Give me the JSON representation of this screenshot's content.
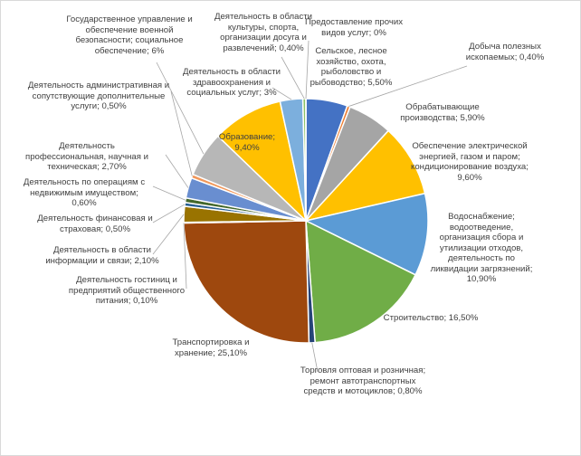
{
  "chart_data": {
    "type": "pie",
    "label_separator": "; ",
    "categories": [
      "Сельское, лесное хозяйство, охота, рыболовство и рыбоводство",
      "Добыча полезных ископаемых",
      "Обрабатывающие производства",
      "Обеспечение электрической энергией, газом и паром; кондиционирование воздуха",
      "Водоснабжение; водоотведение, организация сбора и утилизации отходов, деятельность по ликвидации загрязнений",
      "Строительство",
      "Торговля оптовая и розничная; ремонт автотранспортных средств и мотоциклов",
      "Транспортировка и хранение",
      "Деятельность гостиниц и предприятий общественного питания",
      "Деятельность в области информации и связи",
      "Деятельность финансовая и страховая",
      "Деятельность по операциям с недвижимым имуществом",
      "Деятельность профессиональная, научная и техническая",
      "Деятельность административная и сопутствующие дополнительные услуги",
      "Государственное управление и обеспечение военной безопасности; социальное обеспечение",
      "Образование",
      "Деятельность в области здравоохранения и социальных услуг",
      "Деятельность в области культуры, спорта, организации досуга и развлечений",
      "Предоставление прочих видов услуг"
    ],
    "values": [
      5.5,
      0.4,
      5.9,
      9.6,
      10.9,
      16.5,
      0.8,
      25.1,
      0.1,
      2.1,
      0.5,
      0.6,
      2.7,
      0.5,
      6,
      9.4,
      3,
      0.4,
      0
    ],
    "value_labels": [
      "5,50%",
      "0,40%",
      "5,90%",
      "9,60%",
      "10,90%",
      "16,50%",
      "0,80%",
      "25,10%",
      "0,10%",
      "2,10%",
      "0,50%",
      "0,60%",
      "2,70%",
      "0,50%",
      "6%",
      "9,40%",
      "3%",
      "0,40%",
      "0%"
    ],
    "colors": [
      "#4472c4",
      "#ed7d31",
      "#a5a5a5",
      "#ffc000",
      "#5b9bd5",
      "#70ad47",
      "#264478",
      "#9e480e",
      "#636363",
      "#997300",
      "#255e91",
      "#43682b",
      "#698ed0",
      "#f1975a",
      "#b7b7b7",
      "#ffc000",
      "#7cafdd",
      "#8cc168",
      "#335aa1"
    ]
  }
}
